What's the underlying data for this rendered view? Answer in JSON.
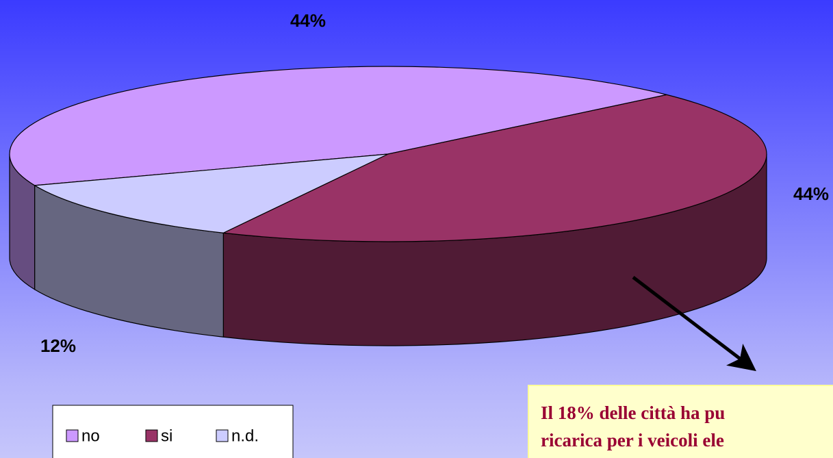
{
  "chart_data": {
    "type": "pie3d",
    "categories": [
      "no",
      "si",
      "n.d."
    ],
    "values": [
      44,
      44,
      12
    ],
    "value_labels": [
      "44%",
      "44%",
      "12%"
    ],
    "colors": [
      "#cc99ff",
      "#993366",
      "#ccccff"
    ],
    "annotation": [
      "Il 18% delle città ha pu",
      "ricarica per i veicoli ele"
    ]
  }
}
